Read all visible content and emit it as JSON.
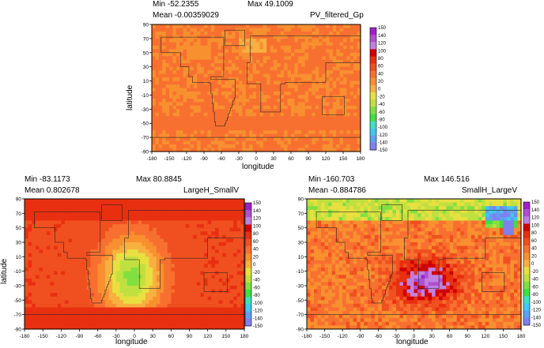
{
  "colorbar_ticks": [
    "150",
    "140",
    "120",
    "100",
    "80",
    "60",
    "40",
    "20",
    "0",
    "-20",
    "-40",
    "-60",
    "-80",
    "-100",
    "-120",
    "-140",
    "-150"
  ],
  "colorbar_colors": [
    "#a020c8",
    "#b050d0",
    "#c080e0",
    "#d00000",
    "#e83010",
    "#f05020",
    "#f87030",
    "#f89030",
    "#f8b040",
    "#e8e040",
    "#c0e040",
    "#80e040",
    "#40e040",
    "#40e0c0",
    "#40c8f0",
    "#60a0f0",
    "#8080f0"
  ],
  "chart_data": [
    {
      "type": "heatmap",
      "title": "PV_filtered_Gp",
      "min_text": "Min -52.2355",
      "max_text": "Max 49.1009",
      "mean_text": "Mean -0.00359029",
      "xlabel": "longitude",
      "ylabel": "latitude",
      "x_ticks": [
        "-180",
        "-150",
        "-120",
        "-90",
        "-60",
        "-30",
        "0",
        "30",
        "60",
        "90",
        "120",
        "150",
        "180"
      ],
      "y_ticks": [
        "90",
        "70",
        "50",
        "30",
        "10",
        "-10",
        "-30",
        "-50",
        "-70",
        "-90"
      ],
      "xlim": [
        -180,
        180
      ],
      "ylim": [
        -90,
        90
      ],
      "min": -52.2355,
      "max": 49.1009,
      "mean": -0.00359029,
      "field": "orange"
    },
    {
      "type": "heatmap",
      "title": "LargeH_SmallV",
      "min_text": "Min -83.1173",
      "max_text": "Max 80.8845",
      "mean_text": "Mean 0.802678",
      "xlabel": "longitude",
      "ylabel": "latitude",
      "x_ticks": [
        "-180",
        "-150",
        "-120",
        "-90",
        "-60",
        "-30",
        "0",
        "30",
        "60",
        "90",
        "120",
        "150",
        "180"
      ],
      "y_ticks": [
        "90",
        "70",
        "50",
        "30",
        "10",
        "-10",
        "-30",
        "-50",
        "-70",
        "-90"
      ],
      "xlim": [
        -180,
        180
      ],
      "ylim": [
        -90,
        90
      ],
      "min": -83.1173,
      "max": 80.8845,
      "mean": 0.802678,
      "field": "largeH"
    },
    {
      "type": "heatmap",
      "title": "SmallH_LargeV",
      "min_text": "Min -160.703",
      "max_text": "Max 146.516",
      "mean_text": "Mean -0.884786",
      "xlabel": "longitude",
      "ylabel": "",
      "x_ticks": [
        "-180",
        "-150",
        "-120",
        "-90",
        "-60",
        "-30",
        "0",
        "30",
        "60",
        "90",
        "120",
        "150",
        "180"
      ],
      "y_ticks": [
        "90",
        "70",
        "50",
        "30",
        "10",
        "-10",
        "-30",
        "-50",
        "-70",
        "-90"
      ],
      "xlim": [
        -180,
        180
      ],
      "ylim": [
        -90,
        90
      ],
      "min": -160.703,
      "max": 146.516,
      "mean": -0.884786,
      "field": "smallH"
    }
  ]
}
